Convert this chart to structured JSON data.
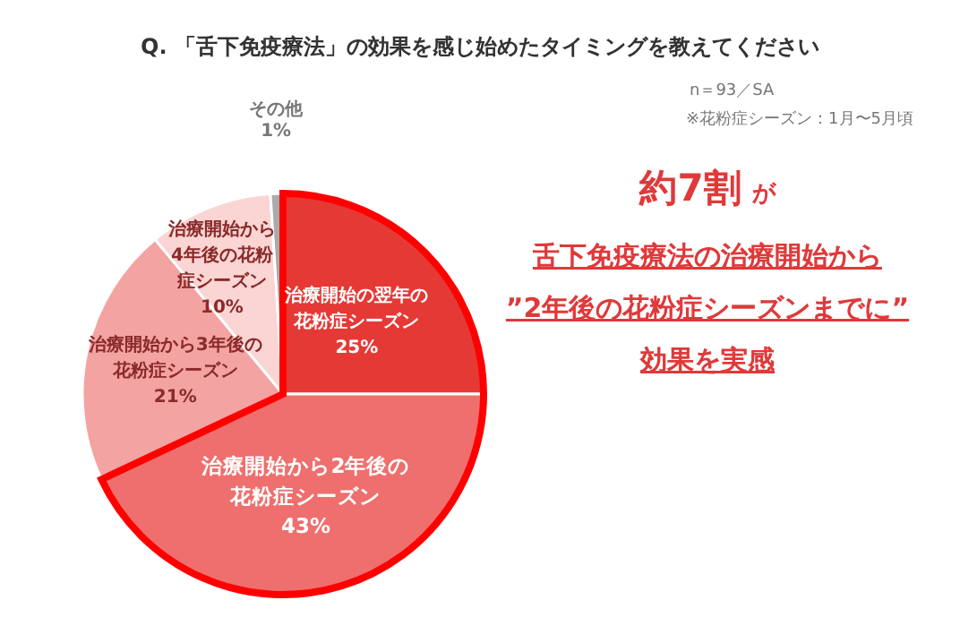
{
  "chart_data": {
    "type": "pie",
    "title": "Q. 「舌下免疫療法」の効果を感じ始めたタイミングを教えてください",
    "categories": [
      "治療開始の翌年の花粉症シーズン",
      "治療開始から2年後の花粉症シーズン",
      "治療開始から3年後の花粉症シーズン",
      "治療開始から4年後の花粉症シーズン",
      "その他"
    ],
    "values": [
      25,
      43,
      21,
      10,
      1
    ],
    "colors": [
      "#e53935",
      "#ee6f6d",
      "#f3a3a1",
      "#fad5d3",
      "#aaaaaa"
    ],
    "value_labels": [
      "25%",
      "43%",
      "21%",
      "10%",
      "1%"
    ],
    "annotations": [
      "n＝93／SA",
      "※花粉症シーズン：1月〜5月頃",
      "約7割",
      "が",
      "舌下免疫療法の治療開始から",
      "”2年後の花粉症シーズンまでに”",
      "効果を実感"
    ]
  }
}
